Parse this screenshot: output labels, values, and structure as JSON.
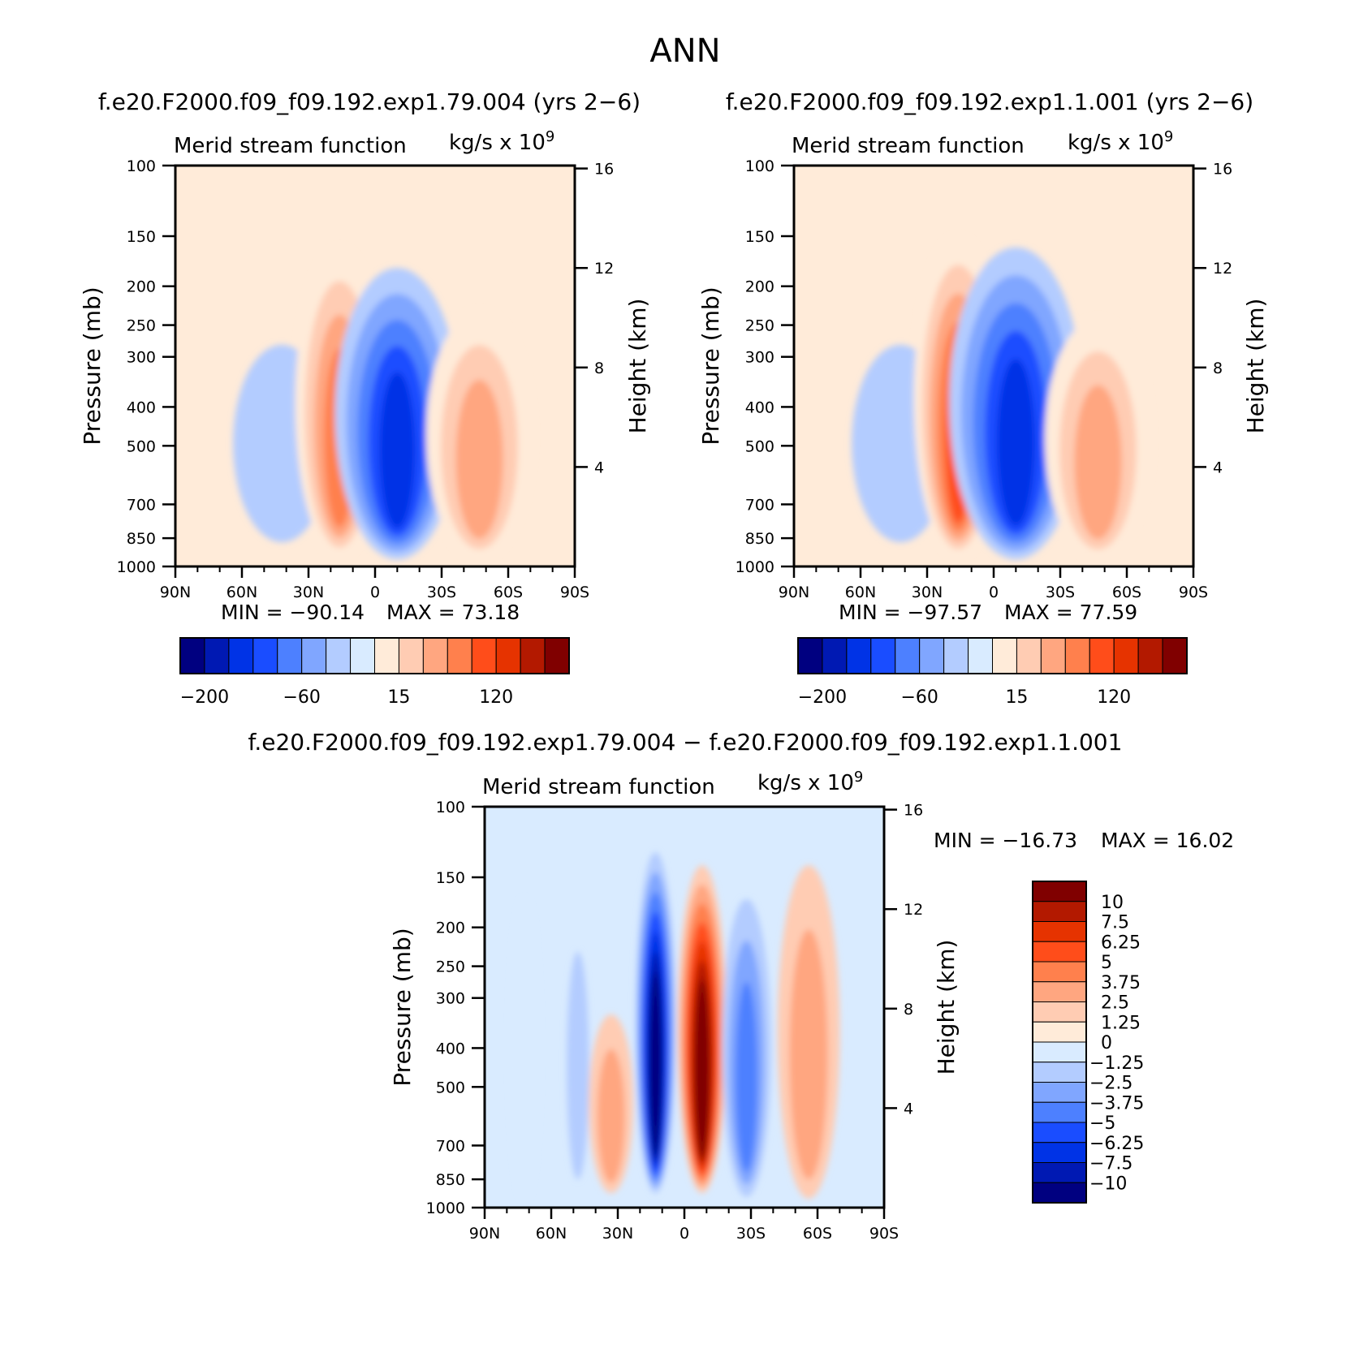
{
  "figure": {
    "season": "ANN",
    "panel_titles": [
      "f.e20.F2000.f09_f09.192.exp1.79.004 (yrs 2−6)",
      "f.e20.F2000.f09_f09.192.exp1.1.001 (yrs 2−6)",
      "f.e20.F2000.f09_f09.192.exp1.79.004 − f.e20.F2000.f09_f09.192.exp1.1.001"
    ]
  },
  "palettes": {
    "abs": [
      "#000080",
      "#0019b3",
      "#0033e6",
      "#1a4dff",
      "#4d80ff",
      "#80a6ff",
      "#b3ccff",
      "#d9ebff",
      "#ffebd9",
      "#ffccb3",
      "#ffa680",
      "#ff804d",
      "#ff4d1a",
      "#e63300",
      "#b31900",
      "#800000"
    ],
    "diff": [
      "#000080",
      "#0019b3",
      "#0033e6",
      "#1a4dff",
      "#4d80ff",
      "#80a6ff",
      "#b3ccff",
      "#d9ebff",
      "#ffebd9",
      "#ffccb3",
      "#ffa680",
      "#ff804d",
      "#ff4d1a",
      "#e63300",
      "#b31900",
      "#800000"
    ]
  },
  "chart_data": [
    {
      "type": "contour",
      "subtitle_left": "Merid stream function",
      "units": "kg/s x 10",
      "units_exp": "9",
      "xlabel": "",
      "ylabel": "Pressure (mb)",
      "ylabel_right": "Height (km)",
      "x_ticks": [
        "90N",
        "60N",
        "30N",
        "0",
        "30S",
        "60S",
        "90S"
      ],
      "x_values": [
        90,
        60,
        30,
        0,
        -30,
        -60,
        -90
      ],
      "y_ticks": [
        100,
        150,
        200,
        250,
        300,
        400,
        500,
        700,
        850,
        1000
      ],
      "y_log": true,
      "ylim": [
        100,
        1000
      ],
      "height_ticks": [
        4,
        8,
        12,
        16
      ],
      "min_text": "MIN = −90.14",
      "max_text": "MAX = 73.18",
      "min": -90.14,
      "max": 73.18,
      "colorbar_tick_labels": [
        "−200",
        "−60",
        "15",
        "120"
      ],
      "cells": [
        {
          "lat": 42,
          "p": 500,
          "lat_w": 22,
          "p_top": 280,
          "p_bot": 870,
          "value": -8
        },
        {
          "lat": 16,
          "p": 550,
          "lat_w": 20,
          "p_top": 160,
          "p_bot": 950,
          "value": 55
        },
        {
          "lat": -10,
          "p": 560,
          "lat_w": 28,
          "p_top": 180,
          "p_bot": 960,
          "value": -80
        },
        {
          "lat": -47,
          "p": 520,
          "lat_w": 24,
          "p_top": 230,
          "p_bot": 960,
          "value": 35
        }
      ]
    },
    {
      "type": "contour",
      "subtitle_left": "Merid stream function",
      "units": "kg/s x 10",
      "units_exp": "9",
      "xlabel": "",
      "ylabel": "Pressure (mb)",
      "ylabel_right": "Height (km)",
      "x_ticks": [
        "90N",
        "60N",
        "30N",
        "0",
        "30S",
        "60S",
        "90S"
      ],
      "x_values": [
        90,
        60,
        30,
        0,
        -30,
        -60,
        -90
      ],
      "y_ticks": [
        100,
        150,
        200,
        250,
        300,
        400,
        500,
        700,
        850,
        1000
      ],
      "y_log": true,
      "ylim": [
        100,
        1000
      ],
      "height_ticks": [
        4,
        8,
        12,
        16
      ],
      "min_text": "MIN = −97.57",
      "max_text": "MAX = 77.59",
      "min": -97.57,
      "max": 77.59,
      "colorbar_tick_labels": [
        "−200",
        "−60",
        "15",
        "120"
      ],
      "cells": [
        {
          "lat": 42,
          "p": 500,
          "lat_w": 22,
          "p_top": 280,
          "p_bot": 870,
          "value": -8
        },
        {
          "lat": 16,
          "p": 550,
          "lat_w": 20,
          "p_top": 150,
          "p_bot": 950,
          "value": 60
        },
        {
          "lat": -10,
          "p": 560,
          "lat_w": 30,
          "p_top": 160,
          "p_bot": 960,
          "value": -90
        },
        {
          "lat": -47,
          "p": 520,
          "lat_w": 24,
          "p_top": 240,
          "p_bot": 960,
          "value": 35
        }
      ]
    },
    {
      "type": "contour",
      "subtitle_left": "Merid stream function",
      "units": "kg/s x 10",
      "units_exp": "9",
      "xlabel": "",
      "ylabel": "Pressure (mb)",
      "ylabel_right": "Height (km)",
      "x_ticks": [
        "90N",
        "60N",
        "30N",
        "0",
        "30S",
        "60S",
        "90S"
      ],
      "x_values": [
        90,
        60,
        30,
        0,
        -30,
        -60,
        -90
      ],
      "y_ticks": [
        100,
        150,
        200,
        250,
        300,
        400,
        500,
        700,
        850,
        1000
      ],
      "y_log": true,
      "ylim": [
        100,
        1000
      ],
      "height_ticks": [
        4,
        8,
        12,
        16
      ],
      "min_text": "MIN = −16.73",
      "max_text": "MAX = 16.02",
      "min": -16.73,
      "max": 16.02,
      "colorbar_tick_labels": [
        "10",
        "7.5",
        "6.25",
        "5",
        "3.75",
        "2.5",
        "1.25",
        "0",
        "−1.25",
        "−2.5",
        "−3.75",
        "−5",
        "−6.25",
        "−7.5",
        "−10"
      ],
      "cells": [
        {
          "lat": 13,
          "p": 450,
          "lat_w": 9,
          "p_top": 130,
          "p_bot": 920,
          "value": -14
        },
        {
          "lat": -8,
          "p": 450,
          "lat_w": 11,
          "p_top": 140,
          "p_bot": 920,
          "value": 14
        },
        {
          "lat": 33,
          "p": 620,
          "lat_w": 10,
          "p_top": 330,
          "p_bot": 920,
          "value": 3
        },
        {
          "lat": -28,
          "p": 520,
          "lat_w": 11,
          "p_top": 170,
          "p_bot": 940,
          "value": -4
        },
        {
          "lat": -56,
          "p": 500,
          "lat_w": 14,
          "p_top": 140,
          "p_bot": 950,
          "value": 3
        },
        {
          "lat": 48,
          "p": 500,
          "lat_w": 5,
          "p_top": 230,
          "p_bot": 850,
          "value": -2
        },
        {
          "lat": 72,
          "p": 500,
          "lat_w": 6,
          "p_top": 170,
          "p_bot": 950,
          "value": -1
        }
      ]
    }
  ]
}
